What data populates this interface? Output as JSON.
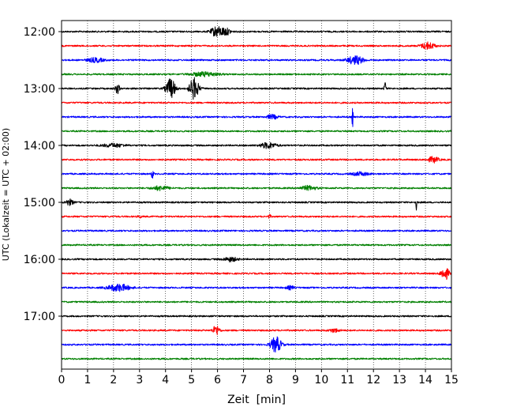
{
  "chart_data": {
    "type": "line",
    "title": "",
    "xlabel": "Zeit  [min]",
    "ylabel": "UTC (Lokalzeit = UTC + 02:00)",
    "xlim": [
      0,
      15
    ],
    "x_ticks": [
      "0",
      "1",
      "2",
      "3",
      "4",
      "5",
      "6",
      "7",
      "8",
      "9",
      "10",
      "11",
      "12",
      "13",
      "14",
      "15"
    ],
    "x_grid": "dotted vertical lines at each minute",
    "y_ticks": [
      "12:00",
      "13:00",
      "14:00",
      "15:00",
      "16:00",
      "17:00"
    ],
    "trace_start": "12:00",
    "trace_interval_minutes": 15,
    "trace_count": 24,
    "color_cycle": [
      "#000000",
      "#ff0000",
      "#0000ff",
      "#008000"
    ],
    "series": [
      {
        "start": "12:00",
        "color": "#000000",
        "events": [
          {
            "minute": 5.95,
            "amplitude": 0.35,
            "width": 0.4
          },
          {
            "minute": 6.3,
            "amplitude": 0.25,
            "width": 0.4
          }
        ]
      },
      {
        "start": "12:15",
        "color": "#ff0000",
        "events": [
          {
            "minute": 14.1,
            "amplitude": 0.25,
            "width": 0.5
          }
        ]
      },
      {
        "start": "12:30",
        "color": "#0000ff",
        "events": [
          {
            "minute": 11.3,
            "amplitude": 0.3,
            "width": 0.6
          },
          {
            "minute": 1.3,
            "amplitude": 0.15,
            "width": 0.6
          }
        ]
      },
      {
        "start": "12:45",
        "color": "#008000",
        "events": [
          {
            "minute": 5.5,
            "amplitude": 0.15,
            "width": 1.0
          }
        ]
      },
      {
        "start": "13:00",
        "color": "#000000",
        "events": [
          {
            "minute": 2.15,
            "amplitude": 0.35,
            "width": 0.15
          },
          {
            "minute": 4.2,
            "amplitude": 0.7,
            "width": 0.35
          },
          {
            "minute": 5.1,
            "amplitude": 0.75,
            "width": 0.35
          },
          {
            "minute": 12.45,
            "amplitude": 0.45,
            "width": 0.08
          }
        ]
      },
      {
        "start": "13:15",
        "color": "#ff0000",
        "events": []
      },
      {
        "start": "13:30",
        "color": "#0000ff",
        "events": [
          {
            "minute": 11.2,
            "amplitude": 0.8,
            "width": 0.05
          },
          {
            "minute": 8.1,
            "amplitude": 0.15,
            "width": 0.4
          }
        ]
      },
      {
        "start": "13:45",
        "color": "#008000",
        "events": []
      },
      {
        "start": "14:00",
        "color": "#000000",
        "events": [
          {
            "minute": 7.95,
            "amplitude": 0.2,
            "width": 0.6
          },
          {
            "minute": 2.0,
            "amplitude": 0.12,
            "width": 0.8
          }
        ]
      },
      {
        "start": "14:15",
        "color": "#ff0000",
        "events": [
          {
            "minute": 14.3,
            "amplitude": 0.2,
            "width": 0.4
          }
        ]
      },
      {
        "start": "14:30",
        "color": "#0000ff",
        "events": [
          {
            "minute": 3.5,
            "amplitude": 0.35,
            "width": 0.08
          },
          {
            "minute": 11.5,
            "amplitude": 0.12,
            "width": 0.6
          }
        ]
      },
      {
        "start": "14:45",
        "color": "#008000",
        "events": [
          {
            "minute": 3.8,
            "amplitude": 0.15,
            "width": 0.6
          },
          {
            "minute": 9.5,
            "amplitude": 0.15,
            "width": 0.6
          }
        ]
      },
      {
        "start": "15:00",
        "color": "#000000",
        "events": [
          {
            "minute": 0.3,
            "amplitude": 0.2,
            "width": 0.3
          },
          {
            "minute": 13.65,
            "amplitude": 0.5,
            "width": 0.06
          }
        ]
      },
      {
        "start": "15:15",
        "color": "#ff0000",
        "events": [
          {
            "minute": 3.0,
            "amplitude": 0.12,
            "width": 0.1
          },
          {
            "minute": 8.0,
            "amplitude": 0.12,
            "width": 0.1
          }
        ]
      },
      {
        "start": "15:30",
        "color": "#0000ff",
        "events": []
      },
      {
        "start": "15:45",
        "color": "#008000",
        "events": []
      },
      {
        "start": "16:00",
        "color": "#000000",
        "events": [
          {
            "minute": 6.5,
            "amplitude": 0.15,
            "width": 0.5
          }
        ]
      },
      {
        "start": "16:15",
        "color": "#ff0000",
        "events": [
          {
            "minute": 14.75,
            "amplitude": 0.45,
            "width": 0.3
          }
        ]
      },
      {
        "start": "16:30",
        "color": "#0000ff",
        "events": [
          {
            "minute": 2.2,
            "amplitude": 0.25,
            "width": 0.8
          },
          {
            "minute": 8.8,
            "amplitude": 0.12,
            "width": 0.3
          }
        ]
      },
      {
        "start": "16:45",
        "color": "#008000",
        "events": []
      },
      {
        "start": "17:00",
        "color": "#000000",
        "events": []
      },
      {
        "start": "17:15",
        "color": "#ff0000",
        "events": [
          {
            "minute": 5.95,
            "amplitude": 0.35,
            "width": 0.25
          },
          {
            "minute": 10.5,
            "amplitude": 0.12,
            "width": 0.4
          }
        ]
      },
      {
        "start": "17:30",
        "color": "#0000ff",
        "events": [
          {
            "minute": 8.25,
            "amplitude": 0.55,
            "width": 0.4
          }
        ]
      },
      {
        "start": "17:45",
        "color": "#008000",
        "events": []
      }
    ]
  }
}
